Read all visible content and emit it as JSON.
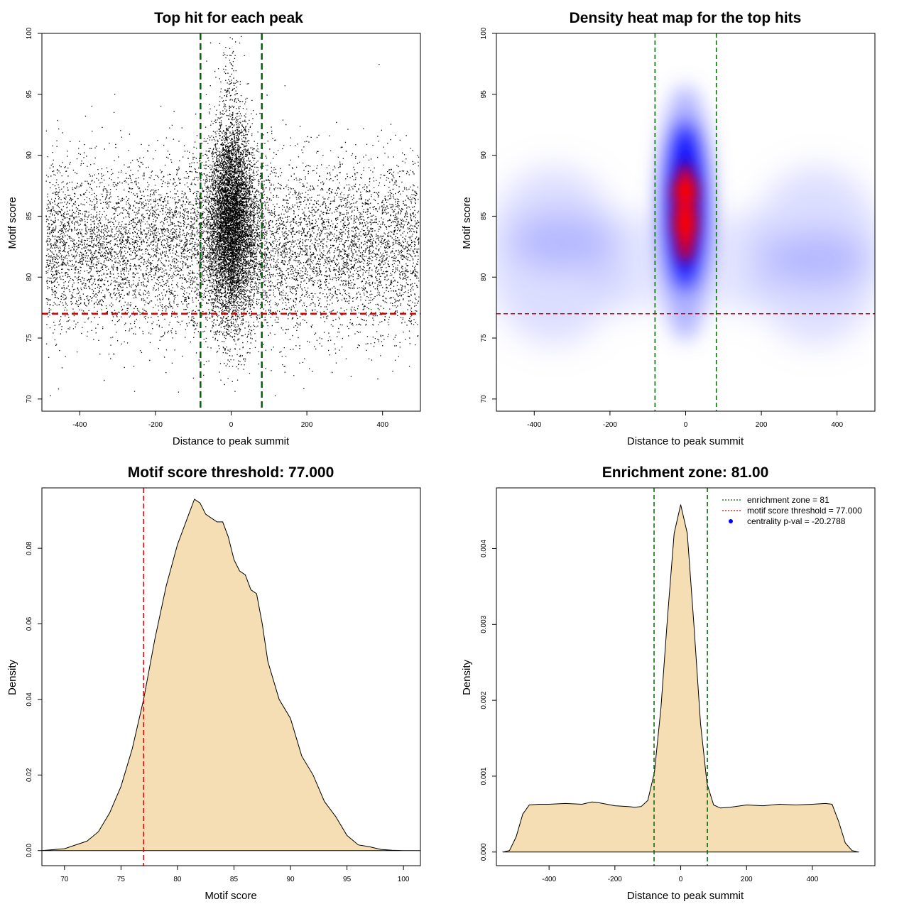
{
  "chart_data": [
    {
      "type": "scatter",
      "title": "Top hit for each peak",
      "xlabel": "Distance to peak summit",
      "ylabel": "Motif score",
      "xlim": [
        -500,
        500
      ],
      "ylim": [
        69,
        100
      ],
      "xticks": [
        -400,
        -200,
        0,
        200,
        400
      ],
      "yticks": [
        70,
        75,
        80,
        85,
        90,
        95,
        100
      ],
      "vlines": [
        -81,
        81
      ],
      "hline": 77,
      "vline_color": "#006400",
      "hline_color": "#dd0000",
      "point_color": "#000000"
    },
    {
      "type": "heatmap",
      "title": "Density heat map for the top hits",
      "xlabel": "Distance to peak summit",
      "ylabel": "Motif score",
      "xlim": [
        -500,
        500
      ],
      "ylim": [
        69,
        100
      ],
      "xticks": [
        -400,
        -200,
        0,
        200,
        400
      ],
      "yticks": [
        70,
        75,
        80,
        85,
        90,
        95,
        100
      ],
      "vlines": [
        -81,
        81
      ],
      "hline": 77,
      "colors": [
        "#ffffff",
        "#0000ff",
        "#ff0000"
      ]
    },
    {
      "type": "area",
      "title": "Motif score threshold: 77.000",
      "xlabel": "Motif score",
      "ylabel": "Density",
      "xlim": [
        68,
        101.5
      ],
      "ylim": [
        -0.004,
        0.096
      ],
      "xticks": [
        70,
        75,
        80,
        85,
        90,
        95,
        100
      ],
      "yticks": [
        0.0,
        0.02,
        0.04,
        0.06,
        0.08
      ],
      "ytick_labels": [
        "0.00",
        "0.02",
        "0.04",
        "0.06",
        "0.08"
      ],
      "vline": 77,
      "fill": "#f5deb3",
      "x": [
        68,
        70,
        72,
        73,
        74,
        75,
        76,
        77,
        78,
        79,
        80,
        81,
        81.5,
        82,
        82.5,
        83,
        83.5,
        84,
        84.5,
        85,
        85.5,
        86,
        86.5,
        87,
        87.5,
        88,
        89,
        90,
        91,
        92,
        93,
        94,
        95,
        96,
        97,
        98,
        99,
        100,
        101.5
      ],
      "y": [
        0,
        0.0005,
        0.0025,
        0.005,
        0.01,
        0.017,
        0.027,
        0.04,
        0.056,
        0.07,
        0.081,
        0.089,
        0.093,
        0.092,
        0.089,
        0.088,
        0.087,
        0.087,
        0.083,
        0.077,
        0.074,
        0.073,
        0.069,
        0.068,
        0.06,
        0.05,
        0.04,
        0.035,
        0.025,
        0.02,
        0.013,
        0.009,
        0.004,
        0.0015,
        0.001,
        0.0003,
        0.0001,
        0,
        0
      ]
    },
    {
      "type": "area",
      "title": "Enrichment zone: 81.00",
      "xlabel": "Distance to peak summit",
      "ylabel": "Density",
      "xlim": [
        -560,
        590
      ],
      "ylim": [
        -0.00018,
        0.0048
      ],
      "xticks": [
        -400,
        -200,
        0,
        200,
        400
      ],
      "yticks": [
        0.0,
        0.001,
        0.002,
        0.003,
        0.004
      ],
      "ytick_labels": [
        "0.000",
        "0.001",
        "0.002",
        "0.003",
        "0.004"
      ],
      "vlines": [
        -81,
        81
      ],
      "fill": "#f5deb3",
      "x": [
        -540,
        -520,
        -500,
        -480,
        -460,
        -430,
        -400,
        -350,
        -300,
        -270,
        -250,
        -200,
        -160,
        -140,
        -120,
        -100,
        -80,
        -60,
        -40,
        -20,
        0,
        20,
        40,
        60,
        80,
        100,
        120,
        150,
        200,
        250,
        300,
        350,
        400,
        440,
        460,
        480,
        500,
        520,
        540
      ],
      "y": [
        0,
        2e-05,
        0.0002,
        0.0005,
        0.00062,
        0.00063,
        0.00063,
        0.00064,
        0.00063,
        0.00066,
        0.00065,
        0.00061,
        0.0006,
        0.00059,
        0.0006,
        0.00068,
        0.00105,
        0.0019,
        0.0031,
        0.0042,
        0.00458,
        0.0042,
        0.003,
        0.0017,
        0.0009,
        0.00062,
        0.00058,
        0.00059,
        0.00062,
        0.00061,
        0.00063,
        0.00062,
        0.00063,
        0.00064,
        0.00063,
        0.0004,
        0.00012,
        2e-05,
        0
      ],
      "legend": [
        {
          "label": "enrichment zone = 81",
          "style": "dotted-line",
          "color": "#006400"
        },
        {
          "label": "motif score threshold = 77.000",
          "style": "dotted-line",
          "color": "#dd0000"
        },
        {
          "label": "centrality p-val = -20.2788",
          "style": "point",
          "color": "#0000ff"
        }
      ]
    }
  ]
}
